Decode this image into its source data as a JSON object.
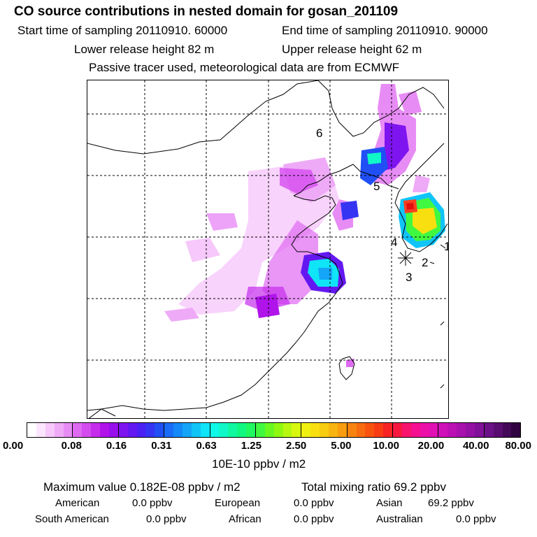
{
  "header": {
    "title": "CO  source contributions in nested domain for gosan_201109",
    "start_label": "Start time of sampling 20110910. 60000",
    "end_label": "End time of sampling 20110910. 90000",
    "lower_release": "Lower release height   82 m",
    "upper_release": "Upper release height   62 m",
    "tracer_note": "Passive tracer used, meteorological data are from ECMWF"
  },
  "map": {
    "region_labels": [
      "1",
      "2",
      "3",
      "4",
      "5",
      "6"
    ],
    "station_marker": "asterisk-icon"
  },
  "colorbar": {
    "tick_labels": [
      "0.00",
      "0.08",
      "0.16",
      "0.31",
      "0.63",
      "1.25",
      "2.50",
      "5.00",
      "10.00",
      "20.00",
      "40.00",
      "80.00"
    ],
    "colors": [
      "#ffffff",
      "#fce6ff",
      "#f6c8fb",
      "#efaaf7",
      "#e88cf5",
      "#df6af2",
      "#d44cef",
      "#c52cec",
      "#b014ea",
      "#9810ec",
      "#7e14ef",
      "#6418f1",
      "#4a20f3",
      "#3634f3",
      "#2050f5",
      "#1a6cf6",
      "#1488f7",
      "#14a4f8",
      "#10c4f8",
      "#10e4f7",
      "#10f8e8",
      "#10f8c8",
      "#10f8a0",
      "#10f880",
      "#20f860",
      "#40f840",
      "#68f820",
      "#90f810",
      "#b8f810",
      "#d8f810",
      "#f0f010",
      "#f8e010",
      "#f8cc10",
      "#f8b410",
      "#f89c10",
      "#f88410",
      "#f86c10",
      "#f85410",
      "#f83c14",
      "#f82424",
      "#f81840",
      "#f8146c",
      "#f41090",
      "#ec10a8",
      "#e010b4",
      "#d010b8",
      "#bc10b4",
      "#a810ac",
      "#9410a4",
      "#801098",
      "#6c1088",
      "#580c70",
      "#440858",
      "#300440"
    ],
    "unit": "10E-10 ppbv / m2"
  },
  "footer": {
    "max_value": "Maximum value  0.182E-08 ppbv / m2",
    "total_mixing": "Total mixing ratio      69.2 ppbv",
    "contributions": [
      {
        "region": "American",
        "value": "0.0 ppbv"
      },
      {
        "region": "European",
        "value": "0.0 ppbv"
      },
      {
        "region": "Asian",
        "value": "69.2 ppbv"
      },
      {
        "region": "South American",
        "value": "0.0 ppbv"
      },
      {
        "region": "African",
        "value": "0.0 ppbv"
      },
      {
        "region": "Australian",
        "value": "0.0 ppbv"
      }
    ]
  }
}
